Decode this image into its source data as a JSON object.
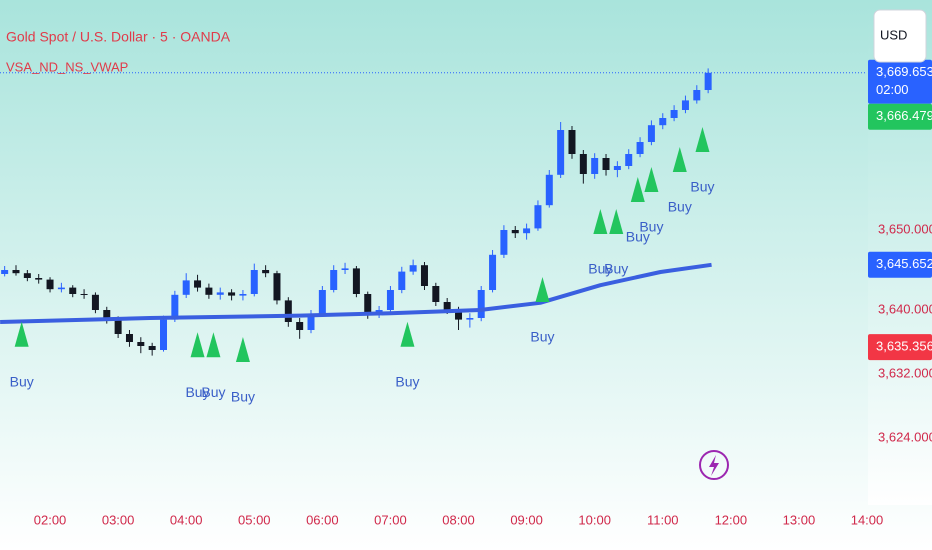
{
  "header": {
    "symbol_title": "Gold Spot / U.S. Dollar · 5 · OANDA",
    "indicator": "VSA_ND_NS_VWAP",
    "currency_button": "USD"
  },
  "chart_data": {
    "type": "candlestick",
    "x": [
      80,
      90,
      100,
      110,
      120,
      130,
      140,
      150,
      160,
      170,
      180,
      190,
      200,
      210,
      220,
      230,
      240,
      250,
      260,
      270,
      280,
      290,
      300,
      310,
      320,
      330,
      340,
      350,
      360,
      370,
      380,
      390,
      400,
      410,
      420,
      430,
      440,
      450,
      460,
      470,
      480,
      490,
      500,
      510,
      520,
      530,
      540,
      550,
      560,
      570,
      580,
      590,
      600,
      610,
      620,
      630,
      640,
      650,
      660,
      670,
      680,
      690,
      700
    ],
    "ohlc": [
      [
        3644.5,
        3645.5,
        3644.2,
        3645.0
      ],
      [
        3645.0,
        3645.6,
        3644.3,
        3644.6
      ],
      [
        3644.6,
        3645.0,
        3643.6,
        3644.0
      ],
      [
        3644.0,
        3644.5,
        3643.3,
        3643.8
      ],
      [
        3643.8,
        3644.1,
        3642.2,
        3642.6
      ],
      [
        3642.6,
        3643.4,
        3642.2,
        3642.8
      ],
      [
        3642.8,
        3643.1,
        3641.6,
        3642.0
      ],
      [
        3642.0,
        3642.6,
        3641.4,
        3641.9
      ],
      [
        3641.9,
        3642.2,
        3639.6,
        3640.0
      ],
      [
        3640.0,
        3640.4,
        3638.3,
        3638.8
      ],
      [
        3638.8,
        3639.2,
        3636.5,
        3637.0
      ],
      [
        3637.0,
        3637.5,
        3635.4,
        3636.0
      ],
      [
        3636.0,
        3636.6,
        3634.6,
        3635.5
      ],
      [
        3635.5,
        3635.9,
        3634.3,
        3635.0
      ],
      [
        3635.0,
        3639.3,
        3634.8,
        3638.8
      ],
      [
        3638.8,
        3642.4,
        3638.5,
        3641.9
      ],
      [
        3641.9,
        3644.6,
        3641.5,
        3643.7
      ],
      [
        3643.7,
        3644.4,
        3642.3,
        3642.8
      ],
      [
        3642.8,
        3643.3,
        3641.4,
        3641.9
      ],
      [
        3641.9,
        3642.8,
        3641.3,
        3642.2
      ],
      [
        3642.2,
        3642.6,
        3641.2,
        3641.8
      ],
      [
        3641.8,
        3642.5,
        3641.2,
        3642.0
      ],
      [
        3642.0,
        3645.8,
        3641.7,
        3645.0
      ],
      [
        3645.0,
        3645.6,
        3644.1,
        3644.6
      ],
      [
        3644.6,
        3644.9,
        3640.7,
        3641.2
      ],
      [
        3641.2,
        3641.6,
        3637.9,
        3638.5
      ],
      [
        3638.5,
        3639.0,
        3636.4,
        3637.5
      ],
      [
        3637.5,
        3640.0,
        3637.1,
        3639.5
      ],
      [
        3639.5,
        3643.0,
        3639.2,
        3642.5
      ],
      [
        3642.5,
        3645.6,
        3642.2,
        3645.0
      ],
      [
        3645.0,
        3645.9,
        3644.5,
        3645.2
      ],
      [
        3645.2,
        3645.5,
        3641.6,
        3642.0
      ],
      [
        3642.0,
        3642.3,
        3638.9,
        3639.4
      ],
      [
        3639.4,
        3640.5,
        3639.0,
        3640.0
      ],
      [
        3640.0,
        3643.0,
        3639.7,
        3642.5
      ],
      [
        3642.5,
        3645.4,
        3642.1,
        3644.8
      ],
      [
        3644.8,
        3646.3,
        3644.4,
        3645.6
      ],
      [
        3645.6,
        3646.0,
        3642.5,
        3643.0
      ],
      [
        3643.0,
        3643.4,
        3640.5,
        3641.0
      ],
      [
        3641.0,
        3641.5,
        3639.5,
        3640.0
      ],
      [
        3640.0,
        3640.4,
        3637.5,
        3638.8
      ],
      [
        3638.8,
        3639.6,
        3637.8,
        3639.0
      ],
      [
        3639.0,
        3643.0,
        3638.6,
        3642.5
      ],
      [
        3642.5,
        3647.5,
        3642.2,
        3646.9
      ],
      [
        3646.9,
        3650.6,
        3646.5,
        3650.0
      ],
      [
        3650.0,
        3650.5,
        3649.0,
        3649.6
      ],
      [
        3649.6,
        3650.8,
        3648.8,
        3650.2
      ],
      [
        3650.2,
        3653.7,
        3649.9,
        3653.1
      ],
      [
        3653.1,
        3657.5,
        3652.8,
        3656.9
      ],
      [
        3656.9,
        3663.5,
        3656.5,
        3662.5
      ],
      [
        3662.5,
        3663.0,
        3658.9,
        3659.5
      ],
      [
        3659.5,
        3660.0,
        3655.8,
        3657.0
      ],
      [
        3657.0,
        3659.6,
        3656.4,
        3659.0
      ],
      [
        3659.0,
        3659.5,
        3656.8,
        3657.5
      ],
      [
        3657.5,
        3658.6,
        3656.6,
        3658.0
      ],
      [
        3658.0,
        3660.1,
        3657.6,
        3659.5
      ],
      [
        3659.5,
        3661.6,
        3659.1,
        3661.0
      ],
      [
        3661.0,
        3663.7,
        3660.6,
        3663.1
      ],
      [
        3663.1,
        3664.6,
        3662.6,
        3664.0
      ],
      [
        3664.0,
        3665.6,
        3663.6,
        3665.0
      ],
      [
        3665.0,
        3666.8,
        3664.6,
        3666.2
      ],
      [
        3666.2,
        3668.1,
        3665.8,
        3667.5
      ],
      [
        3667.5,
        3670.2,
        3667.1,
        3669.65
      ]
    ],
    "up_color": "#2962ff",
    "down_color": "#131722",
    "xlim": [
      75.9,
      840
    ],
    "xticks": [
      {
        "value": 120,
        "label": "02:00"
      },
      {
        "value": 180,
        "label": "03:00"
      },
      {
        "value": 240,
        "label": "04:00"
      },
      {
        "value": 300,
        "label": "05:00"
      },
      {
        "value": 360,
        "label": "06:00"
      },
      {
        "value": 420,
        "label": "07:00"
      },
      {
        "value": 480,
        "label": "08:00"
      },
      {
        "value": 540,
        "label": "09:00"
      },
      {
        "value": 600,
        "label": "10:00"
      },
      {
        "value": 660,
        "label": "11:00"
      },
      {
        "value": 720,
        "label": "12:00"
      },
      {
        "value": 780,
        "label": "13:00"
      },
      {
        "value": 840,
        "label": "14:00"
      }
    ],
    "ylim": [
      3615.625,
      3678.75
    ],
    "yticks": [
      {
        "value": 3650,
        "label": "3,650.000"
      },
      {
        "value": 3640,
        "label": "3,640.000"
      },
      {
        "value": 3632,
        "label": "3,632.000"
      },
      {
        "value": 3624,
        "label": "3,624.000"
      }
    ],
    "grid": false,
    "vwap": {
      "color": "#3a5fe0",
      "x": [
        76,
        208,
        340,
        420,
        499,
        552,
        605,
        658,
        703
      ],
      "values": [
        3638.5,
        3639.0,
        3639.3,
        3639.6,
        3640.0,
        3640.9,
        3643.1,
        3644.75,
        3645.65
      ]
    },
    "signals": {
      "color": "#22c55e",
      "label_color": "#3a5fc8",
      "x": [
        95,
        250,
        264,
        290,
        435,
        554,
        605,
        619,
        638,
        650,
        675,
        695
      ],
      "values": [
        3636.9,
        3635.6,
        3635.6,
        3635.0,
        3636.9,
        3642.5,
        3651.0,
        3651.0,
        3655.0,
        3656.25,
        3658.75,
        3661.25
      ],
      "labels": [
        "Buy",
        "Buy",
        "Buy",
        "Buy",
        "Buy",
        "Buy",
        "Buy",
        "Buy",
        "Buy",
        "Buy",
        "Buy",
        "Buy"
      ]
    },
    "price_labels": [
      {
        "value": 3669.653,
        "label": "3,669.653",
        "color": "#2962ff"
      },
      {
        "value": 3666.479,
        "label": "3,666.479",
        "color": "#22c55e"
      },
      {
        "value": 3645.652,
        "label": "3,645.652",
        "color": "#2962ff"
      },
      {
        "value": 3635.356,
        "label": "3,635.356",
        "color": "#f23645"
      }
    ],
    "countdown": "02:00"
  }
}
